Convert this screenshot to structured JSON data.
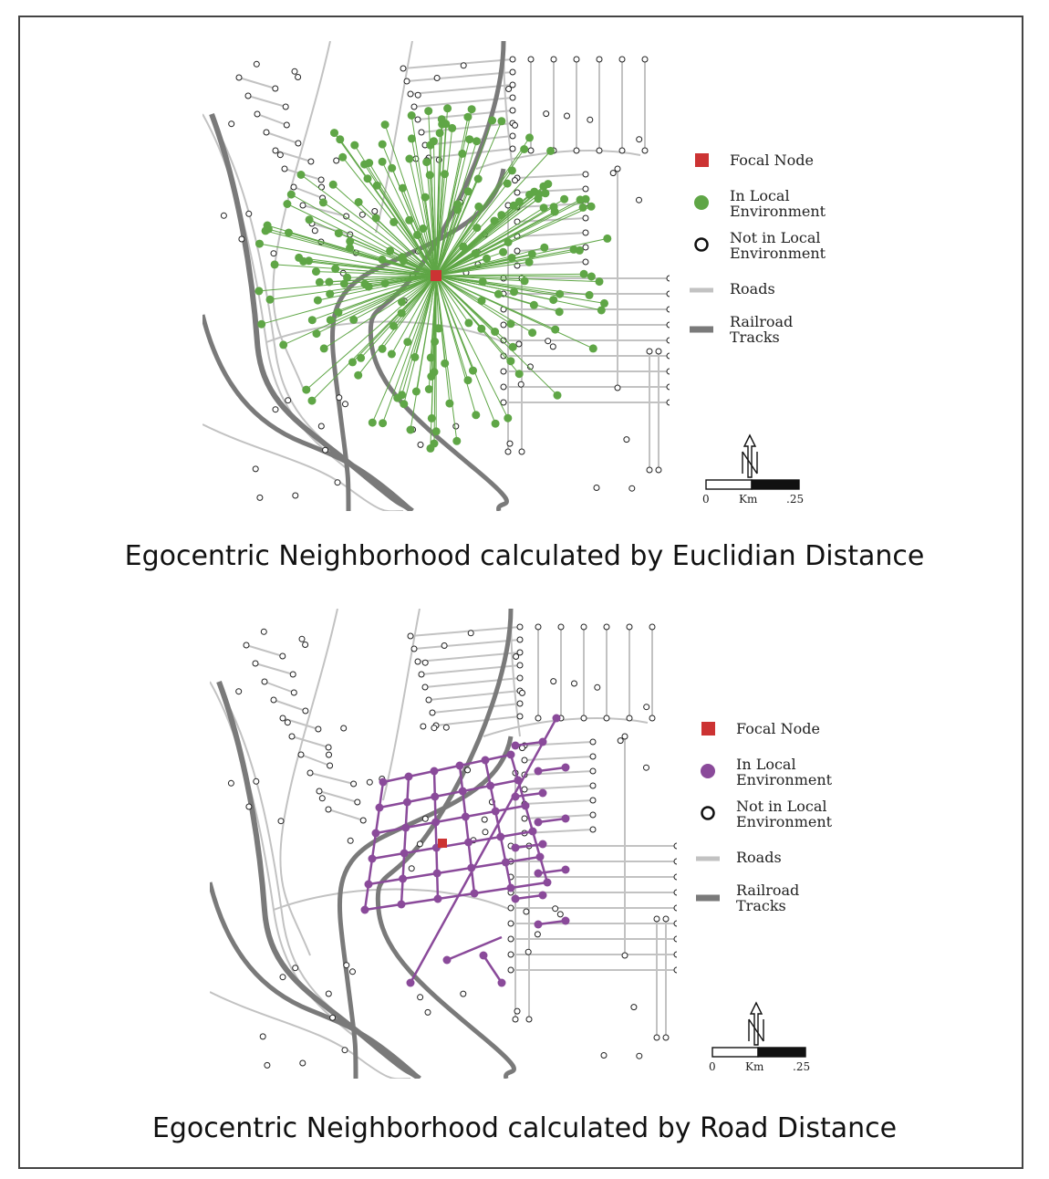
{
  "colors": {
    "frame": "#444444",
    "road": "#c2c2c2",
    "rail": "#7a7a7a",
    "focal": "#cc3333",
    "euclid": "#5fa646",
    "road_env": "#8a4a9a",
    "node_stroke": "#222222"
  },
  "panels": [
    {
      "id": "euclidean",
      "caption": "Egocentric Neighborhood calculated by Euclidian Distance",
      "method": "euclidean",
      "legend": {
        "focal_node": "Focal Node",
        "in_local_line1": "In Local",
        "in_local_line2": "Environment",
        "not_in_local_line1": "Not in Local",
        "not_in_local_line2": "Environment",
        "roads": "Roads",
        "rail_line1": "Railroad",
        "rail_line2": "Tracks"
      },
      "scale": {
        "zero": "0",
        "unit": "Km",
        "max": ".25"
      }
    },
    {
      "id": "road",
      "caption": "Egocentric Neighborhood calculated by Road Distance",
      "method": "road",
      "legend": {
        "focal_node": "Focal Node",
        "in_local_line1": "In Local",
        "in_local_line2": "Environment",
        "not_in_local_line1": "Not in Local",
        "not_in_local_line2": "Environment",
        "roads": "Roads",
        "rail_line1": "Railroad",
        "rail_line2": "Tracks"
      },
      "scale": {
        "zero": "0",
        "unit": "Km",
        "max": ".25"
      }
    }
  ]
}
